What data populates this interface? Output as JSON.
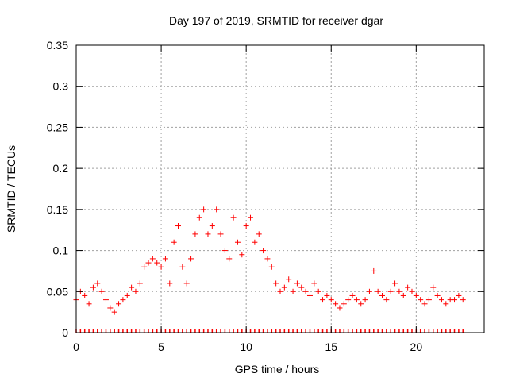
{
  "chart_data": {
    "type": "scatter",
    "title": "Day 197 of 2019, SRMTID for receiver dgar",
    "xlabel": "GPS time / hours",
    "ylabel": "SRMTID / TECUs",
    "xlim": [
      0,
      24
    ],
    "ylim": [
      0,
      0.35
    ],
    "x_ticks": [
      0,
      5,
      10,
      15,
      20
    ],
    "y_ticks": [
      0,
      0.05,
      0.1,
      0.15,
      0.2,
      0.25,
      0.3,
      0.35
    ],
    "x_tick_labels": [
      "0",
      "5",
      "10",
      "15",
      "20"
    ],
    "y_tick_labels": [
      "0",
      "0.05",
      "0.1",
      "0.15",
      "0.2",
      "0.25",
      "0.3",
      "0.35"
    ],
    "grid": true,
    "marker": "+",
    "color": "#ff0000",
    "series": [
      {
        "name": "SRMTID",
        "x": [
          0.0,
          0.25,
          0.5,
          0.75,
          1.0,
          1.25,
          1.5,
          1.75,
          2.0,
          2.25,
          2.5,
          2.75,
          3.0,
          3.25,
          3.5,
          3.75,
          4.0,
          4.25,
          4.5,
          4.75,
          5.0,
          5.25,
          5.5,
          5.75,
          6.0,
          6.25,
          6.5,
          6.75,
          7.0,
          7.25,
          7.5,
          7.75,
          8.0,
          8.25,
          8.5,
          8.75,
          9.0,
          9.25,
          9.5,
          9.75,
          10.0,
          10.25,
          10.5,
          10.75,
          11.0,
          11.25,
          11.5,
          11.75,
          12.0,
          12.25,
          12.5,
          12.75,
          13.0,
          13.25,
          13.5,
          13.75,
          14.0,
          14.25,
          14.5,
          14.75,
          15.0,
          15.25,
          15.5,
          15.75,
          16.0,
          16.25,
          16.5,
          16.75,
          17.0,
          17.25,
          17.5,
          17.75,
          18.0,
          18.25,
          18.5,
          18.75,
          19.0,
          19.25,
          19.5,
          19.75,
          20.0,
          20.25,
          20.5,
          20.75,
          21.0,
          21.25,
          21.5,
          21.75,
          22.0,
          22.25,
          22.5,
          22.75
        ],
        "y": [
          0.04,
          0.05,
          0.045,
          0.035,
          0.055,
          0.06,
          0.05,
          0.04,
          0.03,
          0.025,
          0.035,
          0.04,
          0.045,
          0.055,
          0.05,
          0.06,
          0.08,
          0.085,
          0.09,
          0.085,
          0.08,
          0.09,
          0.06,
          0.11,
          0.13,
          0.08,
          0.06,
          0.09,
          0.12,
          0.14,
          0.15,
          0.12,
          0.13,
          0.15,
          0.12,
          0.1,
          0.09,
          0.14,
          0.11,
          0.095,
          0.13,
          0.14,
          0.11,
          0.12,
          0.1,
          0.09,
          0.08,
          0.06,
          0.05,
          0.055,
          0.065,
          0.05,
          0.06,
          0.055,
          0.05,
          0.045,
          0.06,
          0.05,
          0.04,
          0.045,
          0.04,
          0.035,
          0.03,
          0.035,
          0.04,
          0.045,
          0.04,
          0.035,
          0.04,
          0.05,
          0.075,
          0.05,
          0.045,
          0.04,
          0.05,
          0.06,
          0.05,
          0.045,
          0.055,
          0.05,
          0.045,
          0.04,
          0.035,
          0.04,
          0.055,
          0.045,
          0.04,
          0.035,
          0.04,
          0.04,
          0.045,
          0.04
        ]
      }
    ]
  }
}
